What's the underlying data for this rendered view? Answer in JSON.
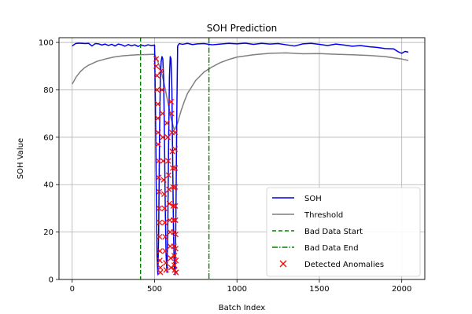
{
  "chart_data": {
    "type": "line",
    "title": "SOH Prediction",
    "xlabel": "Batch Index",
    "ylabel": "SOH Value",
    "xlim": [
      -80,
      2140
    ],
    "ylim": [
      0,
      102
    ],
    "xticks": [
      0,
      500,
      1000,
      1500,
      2000
    ],
    "yticks": [
      0,
      20,
      40,
      60,
      80,
      100
    ],
    "grid": true,
    "legend_position": "lower-right",
    "colors": {
      "soh": "#0000ee",
      "threshold": "#7f7f7f",
      "bad_start": "#008000",
      "bad_end": "#008000",
      "anomaly": "#ee1111"
    },
    "series": [
      {
        "name": "SOH",
        "style": "solid",
        "x": [
          0,
          20,
          40,
          60,
          80,
          100,
          120,
          140,
          160,
          180,
          200,
          220,
          240,
          260,
          280,
          300,
          320,
          340,
          360,
          380,
          400,
          420,
          440,
          460,
          480,
          500,
          505,
          510,
          515,
          520,
          525,
          530,
          535,
          540,
          545,
          550,
          555,
          560,
          565,
          570,
          575,
          580,
          585,
          590,
          595,
          600,
          605,
          610,
          615,
          620,
          625,
          630,
          635,
          640,
          650,
          670,
          700,
          730,
          760,
          800,
          850,
          900,
          950,
          1000,
          1050,
          1100,
          1150,
          1200,
          1250,
          1300,
          1350,
          1400,
          1450,
          1500,
          1550,
          1600,
          1650,
          1700,
          1750,
          1800,
          1850,
          1900,
          1950,
          1980,
          2000,
          2020,
          2040
        ],
        "y": [
          98.5,
          99.5,
          99.7,
          99.6,
          99.5,
          99.6,
          98.5,
          99.5,
          99.4,
          98.9,
          99.3,
          98.7,
          99.2,
          98.5,
          99.3,
          99.0,
          98.4,
          99.1,
          98.6,
          99.0,
          98.3,
          98.9,
          98.5,
          99.0,
          98.7,
          98.9,
          75,
          40,
          10,
          2,
          20,
          60,
          85,
          92,
          94,
          93,
          85,
          60,
          30,
          10,
          3,
          20,
          55,
          85,
          94,
          93,
          80,
          50,
          20,
          5,
          2,
          30,
          70,
          98.5,
          99.5,
          99.2,
          99.6,
          99.1,
          99.4,
          99.5,
          99.0,
          99.3,
          99.6,
          99.4,
          99.7,
          99.2,
          99.6,
          99.3,
          99.5,
          99.0,
          98.5,
          99.4,
          99.6,
          99.2,
          98.7,
          99.3,
          98.9,
          98.4,
          98.7,
          98.2,
          97.9,
          97.4,
          97.3,
          96.0,
          95.4,
          96.2,
          95.9
        ]
      },
      {
        "name": "Threshold",
        "style": "solid",
        "x": [
          0,
          25,
          50,
          75,
          100,
          150,
          200,
          250,
          300,
          350,
          400,
          450,
          500,
          520,
          540,
          560,
          580,
          600,
          620,
          640,
          660,
          680,
          700,
          750,
          800,
          850,
          900,
          950,
          1000,
          1100,
          1200,
          1300,
          1400,
          1500,
          1600,
          1700,
          1800,
          1900,
          2000,
          2040
        ],
        "y": [
          82.4,
          85.5,
          87.7,
          89.3,
          90.4,
          92.0,
          93.0,
          93.8,
          94.3,
          94.6,
          94.8,
          94.9,
          95.0,
          92.0,
          88.0,
          82.0,
          75.0,
          68.0,
          63.0,
          66.0,
          71.0,
          75.0,
          78.5,
          84.0,
          87.5,
          89.7,
          91.5,
          92.8,
          93.8,
          94.8,
          95.4,
          95.6,
          95.2,
          95.3,
          95.0,
          94.8,
          94.5,
          94.0,
          93.0,
          92.4
        ]
      }
    ],
    "vlines": [
      {
        "name": "Bad Data Start",
        "x": 415,
        "style": "dashed"
      },
      {
        "name": "Bad Data End",
        "x": 830,
        "style": "dashdot"
      }
    ],
    "anomalies": {
      "name": "Detected Anomalies",
      "points": [
        [
          510,
          93
        ],
        [
          510,
          90
        ],
        [
          515,
          86
        ],
        [
          515,
          80
        ],
        [
          520,
          74
        ],
        [
          520,
          68
        ],
        [
          522,
          62
        ],
        [
          522,
          57
        ],
        [
          525,
          50
        ],
        [
          525,
          43
        ],
        [
          528,
          37
        ],
        [
          528,
          30
        ],
        [
          530,
          24
        ],
        [
          530,
          18
        ],
        [
          532,
          12
        ],
        [
          532,
          8
        ],
        [
          535,
          5
        ],
        [
          535,
          3
        ],
        [
          540,
          88
        ],
        [
          545,
          80
        ],
        [
          548,
          70
        ],
        [
          550,
          60
        ],
        [
          552,
          50
        ],
        [
          555,
          42
        ],
        [
          558,
          36
        ],
        [
          560,
          30
        ],
        [
          562,
          24
        ],
        [
          565,
          18
        ],
        [
          565,
          12
        ],
        [
          568,
          7
        ],
        [
          570,
          4
        ],
        [
          575,
          66
        ],
        [
          580,
          60
        ],
        [
          583,
          50
        ],
        [
          585,
          44
        ],
        [
          587,
          38
        ],
        [
          590,
          32
        ],
        [
          592,
          25
        ],
        [
          595,
          20
        ],
        [
          595,
          14
        ],
        [
          598,
          9
        ],
        [
          600,
          5
        ],
        [
          600,
          75
        ],
        [
          603,
          70
        ],
        [
          605,
          62
        ],
        [
          608,
          54
        ],
        [
          610,
          47
        ],
        [
          612,
          39
        ],
        [
          613,
          31
        ],
        [
          615,
          25
        ],
        [
          617,
          20
        ],
        [
          618,
          14
        ],
        [
          620,
          10
        ],
        [
          620,
          6
        ],
        [
          622,
          4
        ],
        [
          624,
          62
        ],
        [
          624,
          55
        ],
        [
          625,
          47
        ],
        [
          625,
          39
        ],
        [
          626,
          31
        ],
        [
          627,
          25
        ],
        [
          628,
          19
        ],
        [
          628,
          13
        ],
        [
          629,
          8
        ],
        [
          630,
          3
        ]
      ]
    }
  }
}
